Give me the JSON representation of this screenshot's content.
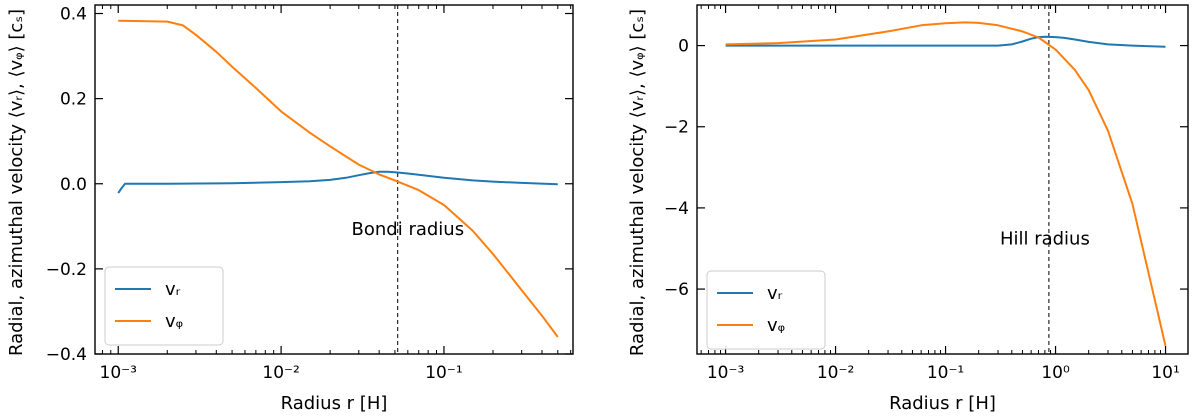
{
  "chart_data": [
    {
      "type": "line",
      "xscale": "log",
      "xlabel": "Radius r [H]",
      "ylabel": "Radial, azimuthal velocity ⟨vᵣ⟩, ⟨vᵩ⟩ [cₛ]",
      "xlim": [
        0.00072,
        0.62
      ],
      "ylim": [
        -0.4,
        0.42
      ],
      "x_ticks": [
        0.001,
        0.01,
        0.1
      ],
      "x_tick_labels": [
        "10⁻³",
        "10⁻²",
        "10⁻¹"
      ],
      "y_ticks": [
        -0.4,
        -0.2,
        0.0,
        0.2,
        0.4
      ],
      "y_tick_labels": [
        "−0.4",
        "−0.2",
        "0.0",
        "0.2",
        "0.4"
      ],
      "vline": {
        "x": 0.052,
        "style": "dashed"
      },
      "annotation": {
        "text": "Bondi radius",
        "x": 0.06,
        "y": -0.12
      },
      "legend": "lower-left",
      "series": [
        {
          "name": "vᵣ",
          "color": "#1f77b4",
          "x": [
            0.001,
            0.00105,
            0.0011,
            0.002,
            0.005,
            0.01,
            0.015,
            0.02,
            0.025,
            0.03,
            0.035,
            0.04,
            0.045,
            0.05,
            0.06,
            0.07,
            0.1,
            0.15,
            0.2,
            0.3,
            0.5
          ],
          "y": [
            -0.022,
            -0.01,
            0.0,
            0.0,
            0.001,
            0.004,
            0.006,
            0.009,
            0.014,
            0.02,
            0.025,
            0.028,
            0.028,
            0.027,
            0.024,
            0.021,
            0.014,
            0.008,
            0.005,
            0.002,
            -0.001
          ]
        },
        {
          "name": "vᵩ",
          "color": "#ff7f0e",
          "x": [
            0.001,
            0.002,
            0.0025,
            0.003,
            0.004,
            0.005,
            0.007,
            0.01,
            0.015,
            0.02,
            0.03,
            0.04,
            0.05,
            0.07,
            0.1,
            0.15,
            0.2,
            0.3,
            0.4,
            0.5
          ],
          "y": [
            0.383,
            0.381,
            0.372,
            0.35,
            0.31,
            0.275,
            0.225,
            0.17,
            0.12,
            0.088,
            0.045,
            0.022,
            0.008,
            -0.015,
            -0.05,
            -0.11,
            -0.165,
            -0.25,
            -0.31,
            -0.36
          ]
        }
      ]
    },
    {
      "type": "line",
      "xscale": "log",
      "xlabel": "Radius r [H]",
      "ylabel": "Radial, azimuthal velocity ⟨vᵣ⟩, ⟨vᵩ⟩ [cₛ]",
      "xlim": [
        0.00055,
        16
      ],
      "ylim": [
        -7.6,
        1.0
      ],
      "x_ticks": [
        0.001,
        0.01,
        0.1,
        1,
        10
      ],
      "x_tick_labels": [
        "10⁻³",
        "10⁻²",
        "10⁻¹",
        "10⁰",
        "10¹"
      ],
      "y_ticks": [
        -6,
        -4,
        -2,
        0
      ],
      "y_tick_labels": [
        "−6",
        "−4",
        "−2",
        "0"
      ],
      "vline": {
        "x": 0.87,
        "style": "dashed"
      },
      "annotation": {
        "text": "Hill radius",
        "x": 0.8,
        "y": -4.9
      },
      "legend": "lower-left",
      "series": [
        {
          "name": "vᵣ",
          "color": "#1f77b4",
          "x": [
            0.001,
            0.01,
            0.1,
            0.3,
            0.4,
            0.5,
            0.6,
            0.7,
            0.8,
            1.0,
            1.2,
            1.5,
            2.0,
            3.0,
            5.0,
            10.0
          ],
          "y": [
            0.0,
            0.0,
            0.0,
            0.0,
            0.03,
            0.1,
            0.17,
            0.21,
            0.22,
            0.21,
            0.19,
            0.15,
            0.09,
            0.03,
            0.0,
            -0.03
          ]
        },
        {
          "name": "vᵩ",
          "color": "#ff7f0e",
          "x": [
            0.001,
            0.003,
            0.01,
            0.03,
            0.06,
            0.1,
            0.15,
            0.2,
            0.3,
            0.5,
            0.7,
            1.0,
            1.5,
            2.0,
            3.0,
            5.0,
            7.0,
            10.0
          ],
          "y": [
            0.03,
            0.06,
            0.15,
            0.35,
            0.5,
            0.55,
            0.57,
            0.56,
            0.5,
            0.35,
            0.2,
            -0.1,
            -0.6,
            -1.1,
            -2.1,
            -3.9,
            -5.6,
            -7.4
          ]
        }
      ]
    }
  ]
}
